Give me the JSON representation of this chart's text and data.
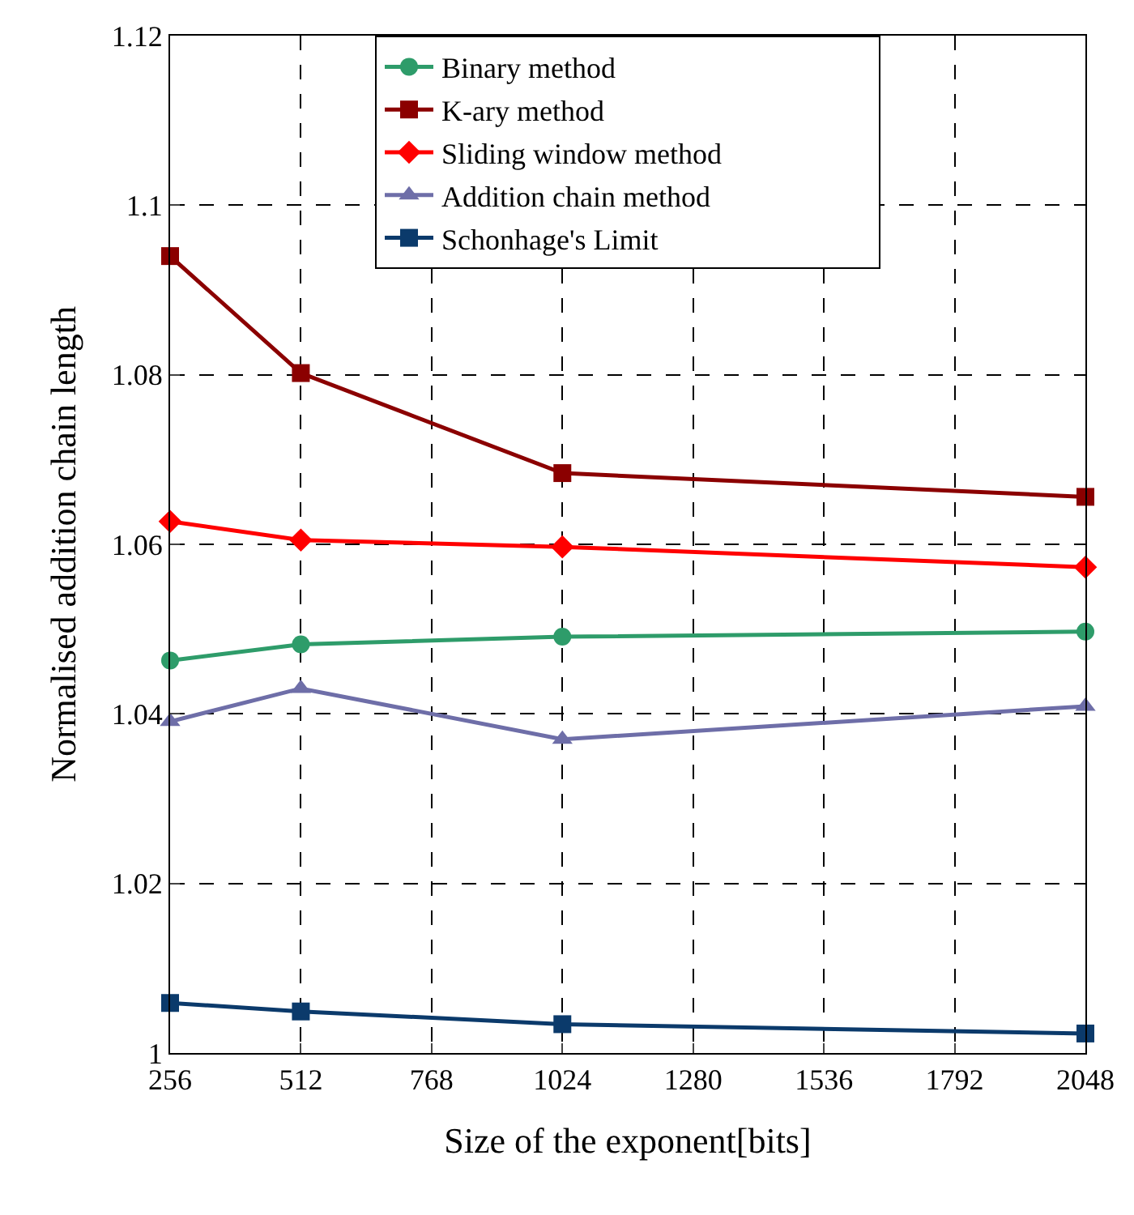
{
  "chart_data": {
    "type": "line",
    "xlabel": "Size of the exponent[bits]",
    "ylabel": "Normalised addition chain length",
    "x": [
      256,
      512,
      1024,
      2048
    ],
    "xlim": [
      256,
      2048
    ],
    "xticks": [
      256,
      512,
      768,
      1024,
      1280,
      1536,
      1792,
      2048
    ],
    "ylim": [
      1,
      1.12
    ],
    "yticks": [
      1,
      1.02,
      1.04,
      1.06,
      1.08,
      1.1,
      1.12
    ],
    "grid": true,
    "legend": "top",
    "series": [
      {
        "name": "Binary method",
        "color": "#2e9c6a",
        "marker": "circle",
        "values": [
          1.0463,
          1.0482,
          1.0491,
          1.0497
        ]
      },
      {
        "name": "K-ary method",
        "color": "#8b0000",
        "marker": "square",
        "values": [
          1.094,
          1.0802,
          1.0684,
          1.0656
        ]
      },
      {
        "name": "Sliding window method",
        "color": "#ff0000",
        "marker": "diamond",
        "values": [
          1.0627,
          1.0605,
          1.0597,
          1.0573
        ]
      },
      {
        "name": "Addition chain method",
        "color": "#6e6ea8",
        "marker": "triangle",
        "values": [
          1.0391,
          1.043,
          1.037,
          1.0409
        ]
      },
      {
        "name": "Schonhage's Limit",
        "color": "#0b3a6b",
        "marker": "square",
        "values": [
          1.0059,
          1.0049,
          1.0034,
          1.0023
        ]
      }
    ]
  }
}
